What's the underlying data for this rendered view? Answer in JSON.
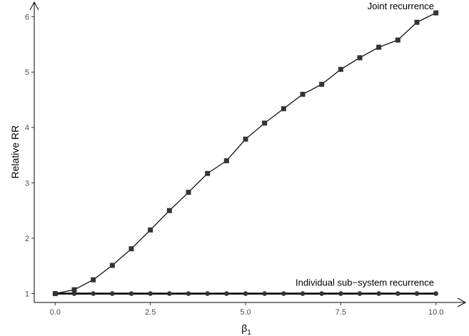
{
  "chart_data": {
    "type": "line",
    "title": "",
    "xlabel": "β₁",
    "ylabel": "Relative RR",
    "xlim": [
      -0.55,
      10.55
    ],
    "ylim": [
      0.84,
      6.2
    ],
    "x_ticks": [
      0,
      2.5,
      5,
      7.5,
      10
    ],
    "x_tick_labels": [
      "0.0",
      "2.5",
      "5.0",
      "7.5",
      "10.0"
    ],
    "y_ticks": [
      1,
      2,
      3,
      4,
      5,
      6
    ],
    "y_tick_labels": [
      "1",
      "2",
      "3",
      "4",
      "5",
      "6"
    ],
    "grid": false,
    "x": [
      0,
      0.5,
      1,
      1.5,
      2,
      2.5,
      3,
      3.5,
      4,
      4.5,
      5,
      5.5,
      6,
      6.5,
      7,
      7.5,
      8,
      8.5,
      9,
      9.5,
      10
    ],
    "series": [
      {
        "name": "Joint recurrence",
        "marker": "square",
        "line_width": 1.2,
        "values": [
          1.0,
          1.07,
          1.25,
          1.51,
          1.81,
          2.15,
          2.5,
          2.83,
          3.17,
          3.4,
          3.79,
          4.08,
          4.34,
          4.6,
          4.78,
          5.05,
          5.26,
          5.45,
          5.58,
          5.9,
          6.07
        ]
      },
      {
        "name": "Individual sub−system recurrence",
        "marker": "circle",
        "line_width": 2.6,
        "values": [
          1,
          1,
          1,
          1,
          1,
          1,
          1,
          1,
          1,
          1,
          1,
          1,
          1,
          1,
          1,
          1,
          1,
          1,
          1,
          1,
          1
        ]
      }
    ],
    "annotations": [
      {
        "text": "Joint recurrence",
        "x": 9.95,
        "y": 6.2,
        "anchor": "end"
      },
      {
        "text": "Individual sub−system recurrence",
        "x": 9.95,
        "y": 1.21,
        "anchor": "end"
      }
    ],
    "colors": {
      "series": "#000000",
      "marker": "#333333",
      "ticks": "#4d4d4d"
    }
  }
}
